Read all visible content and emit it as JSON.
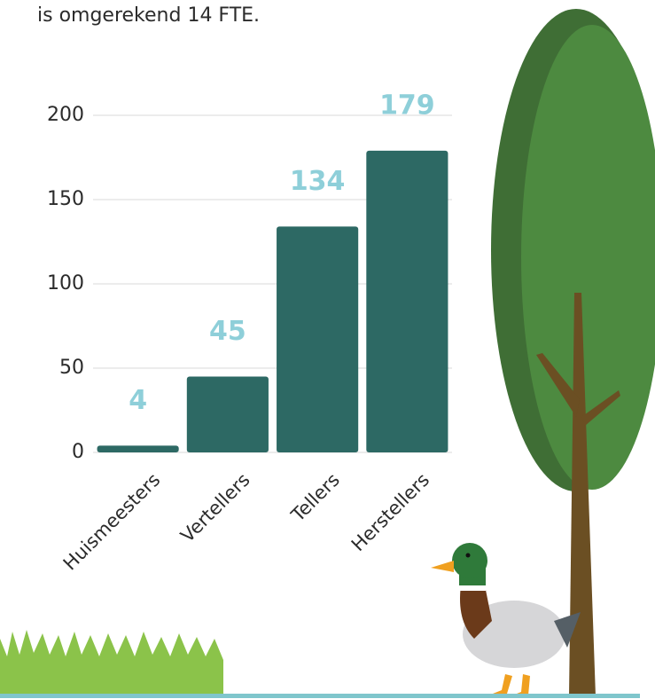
{
  "intro": "is omgerekend 14 FTE.",
  "chart_data": {
    "type": "bar",
    "categories": [
      "Huismeesters",
      "Vertellers",
      "Tellers",
      "Herstellers"
    ],
    "values": [
      4,
      45,
      134,
      179
    ],
    "color": "#2d6964",
    "value_label_color": "#8ecfd9",
    "ylim": [
      0,
      200
    ],
    "yticks": [
      0,
      50,
      100,
      150,
      200
    ],
    "grid": true
  }
}
